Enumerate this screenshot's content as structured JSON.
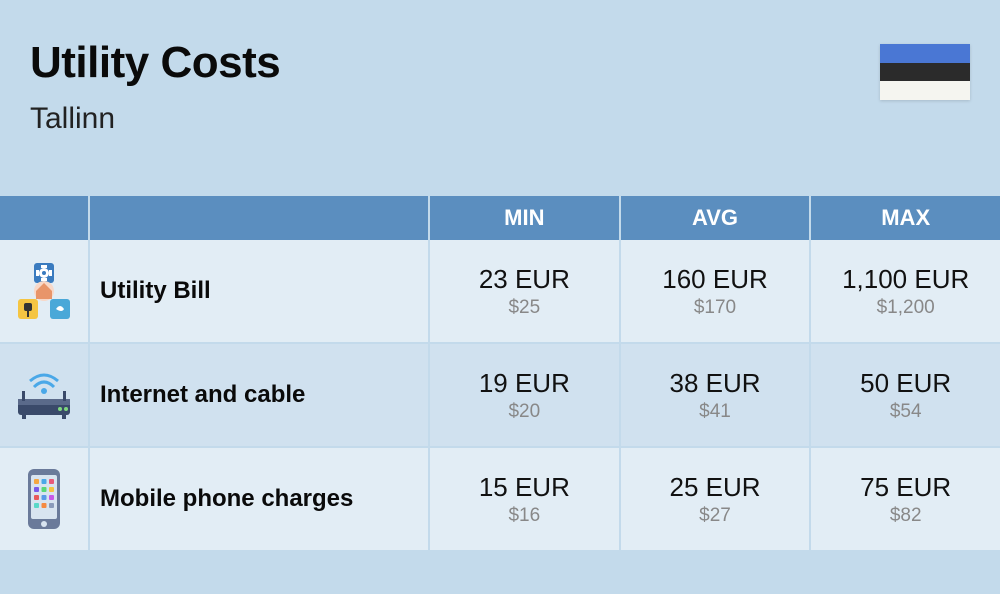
{
  "header": {
    "title": "Utility Costs",
    "subtitle": "Tallinn",
    "flag_colors": [
      "#4a77d4",
      "#2b2b2b",
      "#f5f5f0"
    ]
  },
  "table": {
    "columns": [
      "MIN",
      "AVG",
      "MAX"
    ],
    "rows": [
      {
        "icon": "utility",
        "label": "Utility Bill",
        "min_main": "23 EUR",
        "min_sub": "$25",
        "avg_main": "160 EUR",
        "avg_sub": "$170",
        "max_main": "1,100 EUR",
        "max_sub": "$1,200"
      },
      {
        "icon": "router",
        "label": "Internet and cable",
        "min_main": "19 EUR",
        "min_sub": "$20",
        "avg_main": "38 EUR",
        "avg_sub": "$41",
        "max_main": "50 EUR",
        "max_sub": "$54"
      },
      {
        "icon": "phone",
        "label": "Mobile phone charges",
        "min_main": "15 EUR",
        "min_sub": "$16",
        "avg_main": "25 EUR",
        "avg_sub": "$27",
        "max_main": "75 EUR",
        "max_sub": "$82"
      }
    ]
  },
  "styles": {
    "background_color": "#c3daeb",
    "header_bg": "#5b8ebf",
    "row_odd_bg": "#e2edf5",
    "row_even_bg": "#d0e1ef",
    "title_color": "#0a0a0a",
    "sub_color": "#888888"
  }
}
